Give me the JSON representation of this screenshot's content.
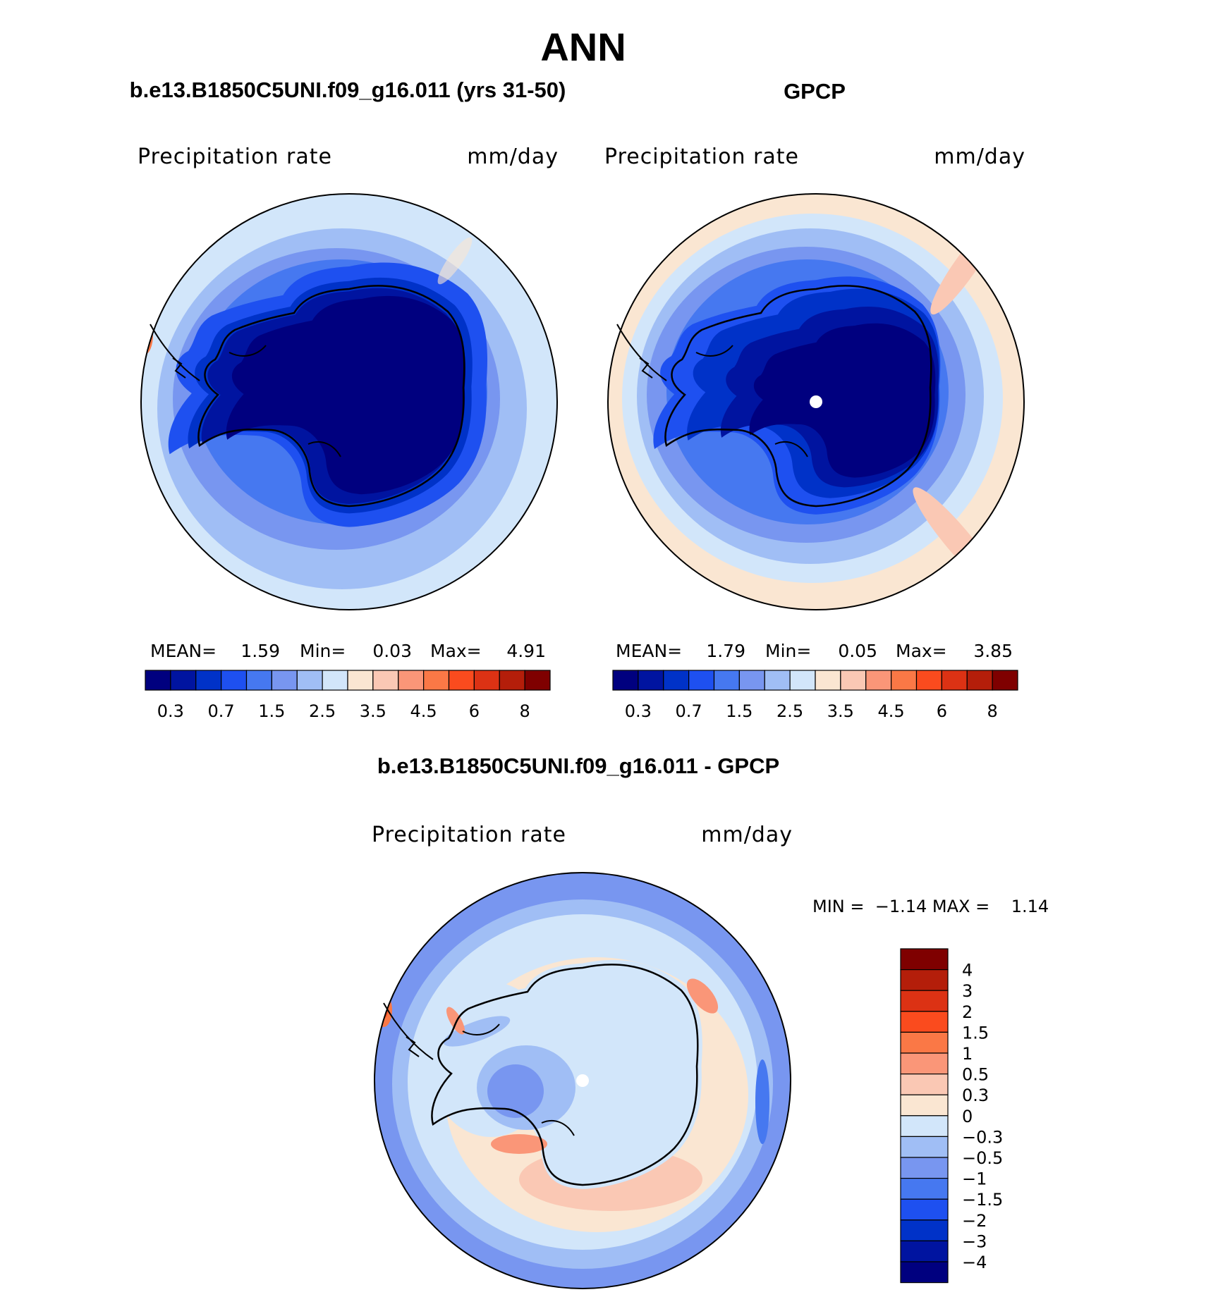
{
  "title": "ANN",
  "panels": [
    {
      "title": "b.e13.B1850C5UNI.f09_g16.011 (yrs 31-50)",
      "variable": "Precipitation rate",
      "units": "mm/day",
      "stats": {
        "mean_label": "MEAN=",
        "mean": "1.59",
        "min_label": "Min=",
        "min": "0.03",
        "max_label": "Max=",
        "max": "4.91"
      }
    },
    {
      "title": "GPCP",
      "variable": "Precipitation rate",
      "units": "mm/day",
      "stats": {
        "mean_label": "MEAN=",
        "mean": "1.79",
        "min_label": "Min=",
        "min": "0.05",
        "max_label": "Max=",
        "max": "3.85"
      }
    }
  ],
  "diff_panel": {
    "title": "b.e13.B1850C5UNI.f09_g16.011 - GPCP",
    "variable": "Precipitation rate",
    "units": "mm/day",
    "minmax_text": "MIN =  −1.14 MAX =    1.14"
  },
  "colorbar": {
    "colors": [
      "#00007f",
      "#0014a0",
      "#0032c8",
      "#1e50f0",
      "#4678f0",
      "#7896f0",
      "#a0bef5",
      "#d2e6fa",
      "#fae6d2",
      "#fac8b4",
      "#fa9678",
      "#fa7846",
      "#fa4b1e",
      "#dc3214",
      "#b41e0a",
      "#7f0000"
    ],
    "tick_labels": [
      "0.3",
      "0.7",
      "1.5",
      "2.5",
      "3.5",
      "4.5",
      "6",
      "8"
    ]
  },
  "diff_colorbar": {
    "colors": [
      "#7f0000",
      "#b41e0a",
      "#dc3214",
      "#fa4b1e",
      "#fa7846",
      "#fa9678",
      "#fac8b4",
      "#fae6d2",
      "#d2e6fa",
      "#a0bef5",
      "#7896f0",
      "#4678f0",
      "#1e50f0",
      "#0032c8",
      "#0014a0",
      "#00007f"
    ],
    "tick_labels": [
      "4",
      "3",
      "2",
      "1.5",
      "1",
      "0.5",
      "0.3",
      "0",
      "−0.3",
      "−0.5",
      "−1",
      "−1.5",
      "−2",
      "−3",
      "−4"
    ]
  }
}
